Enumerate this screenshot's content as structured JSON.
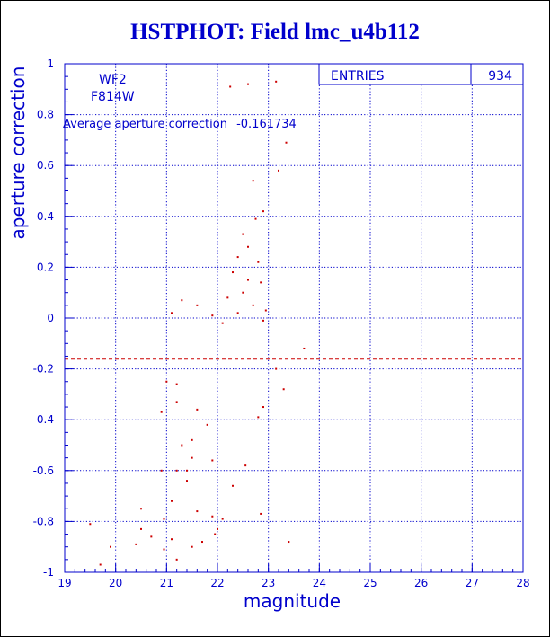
{
  "colors": {
    "axis": "#0000cc",
    "points": "#cc0000",
    "background": "#ffffff"
  },
  "chart_data": {
    "type": "scatter",
    "title": "HSTPHOT: Field lmc_u4b112",
    "xlabel": "magnitude",
    "ylabel": "aperture correction",
    "xlim": [
      19,
      28
    ],
    "ylim": [
      -1,
      1
    ],
    "x_ticks": [
      "19",
      "20",
      "21",
      "22",
      "23",
      "24",
      "25",
      "26",
      "27",
      "28"
    ],
    "y_ticks": [
      "-1",
      "-0.8",
      "-0.6",
      "-0.4",
      "-0.2",
      "0",
      "0.2",
      "0.4",
      "0.6",
      "0.8",
      "1"
    ],
    "grid": true,
    "legend": "none",
    "stats_box": {
      "label": "ENTRIES",
      "value": "934"
    },
    "annotations": {
      "chip": "WF2",
      "filter": "F814W",
      "average_label": "Average aperture correction",
      "average_value": "-0.161734"
    },
    "reference_line": {
      "y": -0.161734,
      "style": "dashed"
    },
    "series": [
      {
        "points": [
          [
            22.25,
            0.91
          ],
          [
            22.6,
            0.92
          ],
          [
            23.15,
            0.93
          ],
          [
            23.35,
            0.69
          ],
          [
            23.2,
            0.58
          ],
          [
            22.7,
            0.54
          ],
          [
            22.9,
            0.42
          ],
          [
            22.75,
            0.39
          ],
          [
            22.5,
            0.33
          ],
          [
            22.6,
            0.28
          ],
          [
            22.4,
            0.24
          ],
          [
            22.8,
            0.22
          ],
          [
            22.3,
            0.18
          ],
          [
            22.6,
            0.15
          ],
          [
            22.85,
            0.14
          ],
          [
            22.5,
            0.1
          ],
          [
            22.2,
            0.08
          ],
          [
            22.7,
            0.05
          ],
          [
            22.95,
            0.03
          ],
          [
            22.4,
            0.02
          ],
          [
            21.9,
            0.01
          ],
          [
            21.3,
            0.07
          ],
          [
            21.6,
            0.05
          ],
          [
            21.1,
            0.02
          ],
          [
            22.1,
            -0.02
          ],
          [
            22.9,
            -0.01
          ],
          [
            23.7,
            -0.12
          ],
          [
            23.15,
            -0.2
          ],
          [
            23.3,
            -0.28
          ],
          [
            22.9,
            -0.35
          ],
          [
            22.8,
            -0.39
          ],
          [
            23.4,
            -0.88
          ],
          [
            22.85,
            -0.77
          ],
          [
            22.55,
            -0.58
          ],
          [
            22.3,
            -0.66
          ],
          [
            22.1,
            -0.79
          ],
          [
            22.0,
            -0.83
          ],
          [
            21.95,
            -0.85
          ],
          [
            21.5,
            -0.9
          ],
          [
            21.2,
            -0.95
          ],
          [
            20.4,
            -0.89
          ],
          [
            20.7,
            -0.86
          ],
          [
            20.95,
            -0.91
          ],
          [
            21.1,
            -0.87
          ],
          [
            21.7,
            -0.88
          ],
          [
            20.5,
            -0.83
          ],
          [
            19.7,
            -0.97
          ],
          [
            19.9,
            -0.9
          ],
          [
            19.5,
            -0.81
          ],
          [
            20.95,
            -0.79
          ],
          [
            20.5,
            -0.75
          ],
          [
            21.6,
            -0.76
          ],
          [
            21.9,
            -0.78
          ],
          [
            20.9,
            -0.6
          ],
          [
            21.2,
            -0.6
          ],
          [
            21.4,
            -0.6
          ],
          [
            21.0,
            -0.25
          ],
          [
            21.2,
            -0.26
          ],
          [
            21.2,
            -0.33
          ],
          [
            21.5,
            -0.48
          ],
          [
            21.3,
            -0.5
          ],
          [
            21.5,
            -0.55
          ],
          [
            21.6,
            -0.36
          ],
          [
            21.8,
            -0.42
          ],
          [
            20.9,
            -0.37
          ],
          [
            21.9,
            -0.56
          ],
          [
            21.4,
            -0.64
          ],
          [
            21.1,
            -0.72
          ]
        ]
      }
    ]
  }
}
